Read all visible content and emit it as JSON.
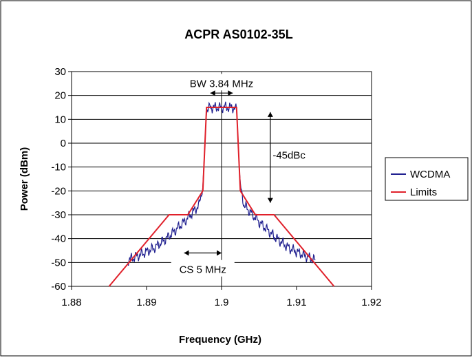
{
  "chart_data": {
    "type": "line",
    "title": "ACPR AS0102-35L",
    "xlabel": "Frequency (GHz)",
    "ylabel": "Power (dBm)",
    "xlim": [
      1.88,
      1.92
    ],
    "ylim": [
      -60,
      30
    ],
    "x_ticks": [
      1.88,
      1.89,
      1.9,
      1.91,
      1.92
    ],
    "x_tick_labels": [
      "1.88",
      "1.89",
      "1.9",
      "1.91",
      "1.92"
    ],
    "y_ticks": [
      30,
      20,
      10,
      0,
      -10,
      -20,
      -30,
      -40,
      -50,
      -60
    ],
    "y_tick_labels": [
      "30",
      "20",
      "10",
      "0",
      "-10",
      "-20",
      "-30",
      "-40",
      "-50",
      "-60"
    ],
    "grid": "horizontal",
    "legend_position": "right",
    "series": [
      {
        "name": "WCDMA",
        "color": "#1f1f8f",
        "x": [
          1.8875,
          1.889,
          1.891,
          1.893,
          1.895,
          1.897,
          1.8975,
          1.898,
          1.8985,
          1.899,
          1.9,
          1.901,
          1.9015,
          1.902,
          1.9025,
          1.903,
          1.905,
          1.907,
          1.909,
          1.911,
          1.9125
        ],
        "y": [
          -49,
          -47,
          -44,
          -39,
          -33,
          -26,
          -18,
          14,
          15,
          15,
          15,
          15,
          15,
          14,
          -18,
          -26,
          -33,
          -39,
          -44,
          -47,
          -49
        ]
      },
      {
        "name": "Limits",
        "color": "#e0202a",
        "x": [
          1.885,
          1.893,
          1.8955,
          1.8955,
          1.8975,
          1.898,
          1.902,
          1.9025,
          1.9045,
          1.9045,
          1.907,
          1.915
        ],
        "y": [
          -60,
          -30,
          -30,
          -30,
          -20,
          15,
          15,
          -20,
          -30,
          -30,
          -30,
          -60
        ]
      }
    ],
    "annotations": [
      {
        "text": "BW 3.84 MHz",
        "x": 1.9,
        "y": 25,
        "arrow_x": [
          1.8985,
          1.9015
        ],
        "arrow_y": 21
      },
      {
        "text": "-45dBc",
        "x": 1.909,
        "y": -5,
        "arrow_x": 1.9065,
        "arrow_y": [
          13,
          -25
        ]
      },
      {
        "text": "CS 5 MHz",
        "x": 1.8975,
        "y": -53,
        "arrow_x": [
          1.895,
          1.9
        ],
        "arrow_y": -46
      }
    ]
  }
}
